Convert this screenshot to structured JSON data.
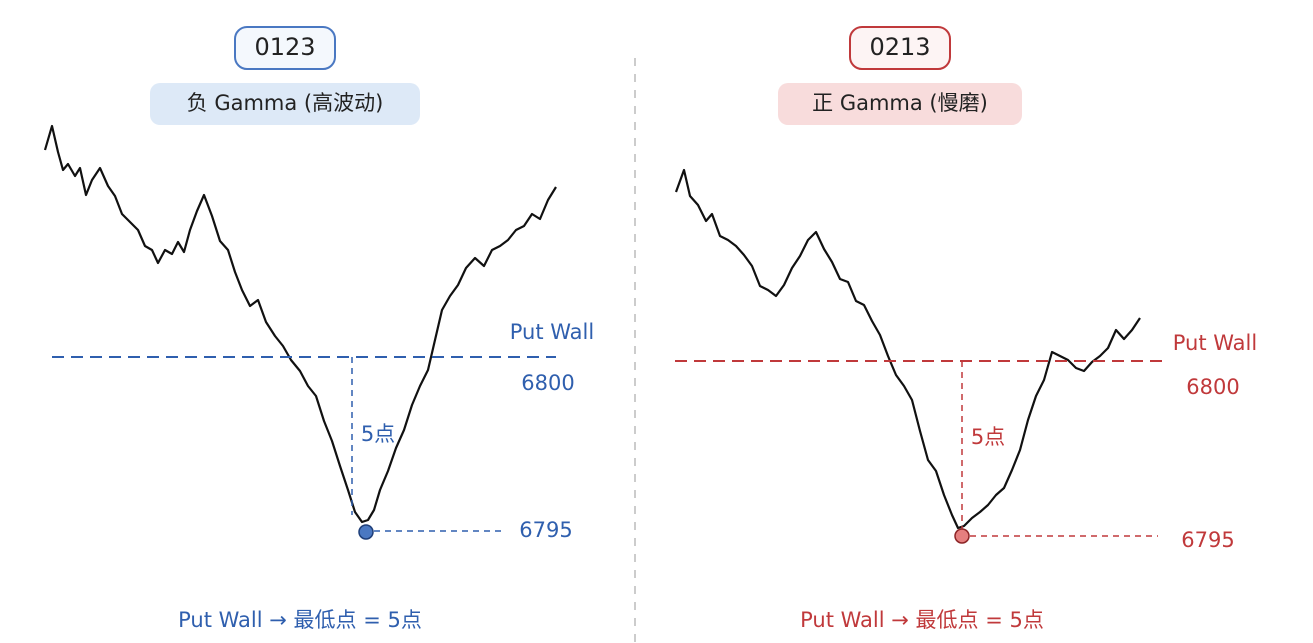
{
  "panels": [
    {
      "date": "0123",
      "regime": "负 Gamma (高波动)",
      "wall_label": "Put Wall",
      "wall_level": "6800",
      "low_level": "6795",
      "gap": "5点",
      "footer": "Put Wall → 最低点 = 5点"
    },
    {
      "date": "0213",
      "regime": "正 Gamma (慢磨)",
      "wall_label": "Put Wall",
      "wall_level": "6800",
      "low_level": "6795",
      "gap": "5点",
      "footer": "Put Wall → 最低点 = 5点"
    }
  ]
}
